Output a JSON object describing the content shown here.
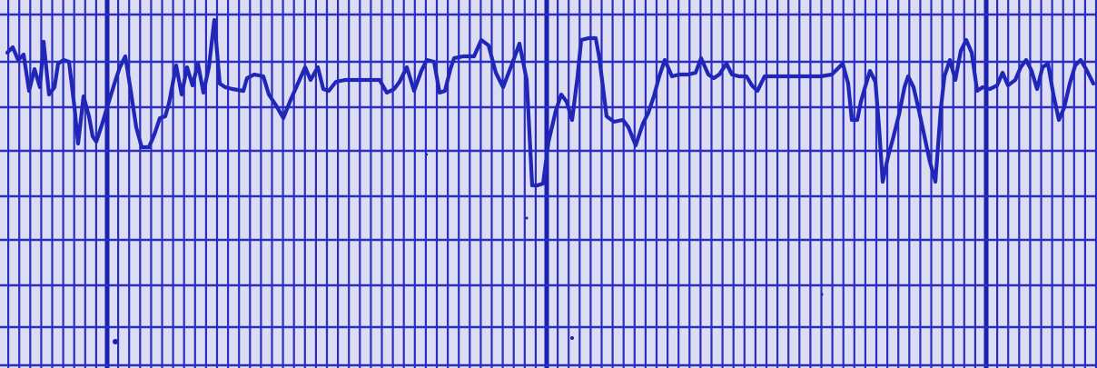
{
  "colors": {
    "paper": "#dcdcf2",
    "grid": "#2a2fbf",
    "grid_major": "#1b20b0",
    "trace": "#1f26b8"
  },
  "strip": {
    "description_visible_text": "",
    "minor_divisions_per_major": 10
  }
}
